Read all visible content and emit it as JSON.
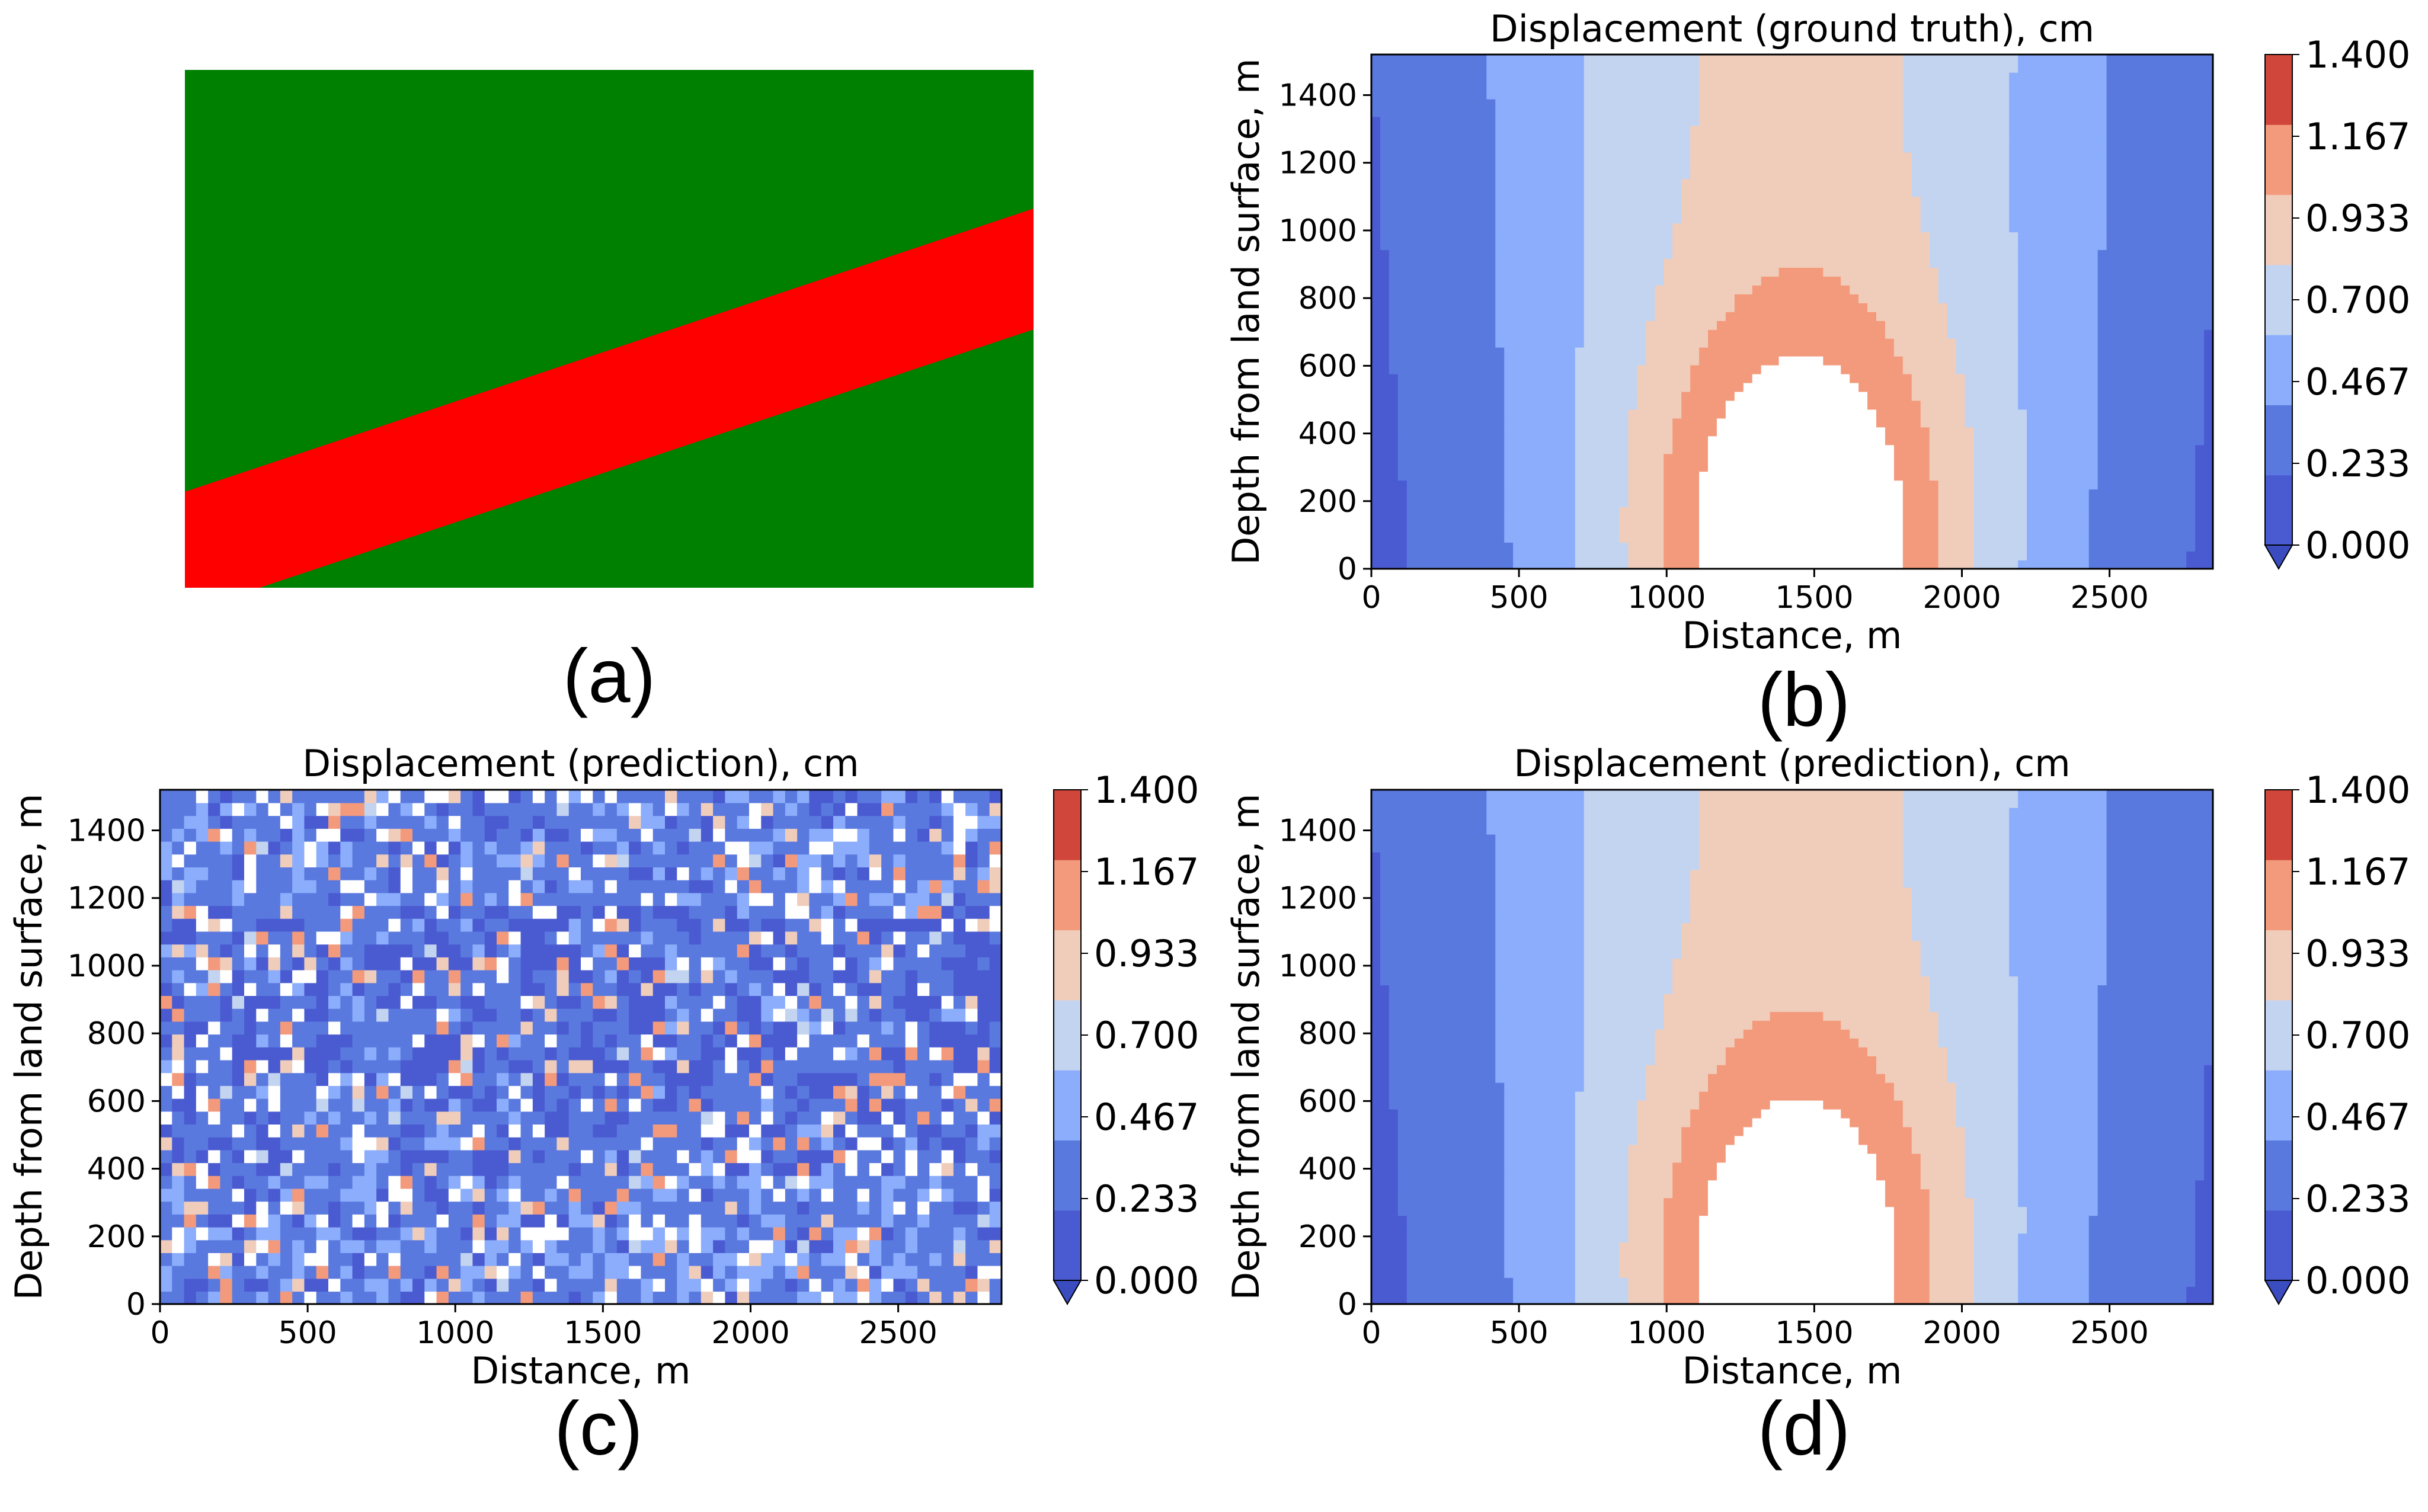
{
  "figure": {
    "panel_labels": [
      "(a)",
      "(b)",
      "(c)",
      "(d)"
    ]
  },
  "panel_a": {
    "colors": {
      "background": "#008000",
      "band": "#ff0000"
    }
  },
  "chart_data": [
    {
      "type": "heatmap",
      "id": "b",
      "title": "Displacement (ground truth), cm",
      "xlabel": "Distance, m",
      "ylabel": "Depth from land surface, m",
      "xlim": [
        0,
        2850
      ],
      "ylim": [
        0,
        1520
      ],
      "xticks": [
        0,
        500,
        1000,
        1500,
        2000,
        2500
      ],
      "yticks": [
        0,
        200,
        400,
        600,
        800,
        1000,
        1200,
        1400
      ],
      "levels": [
        0.0,
        0.233,
        0.467,
        0.7,
        0.933,
        1.167,
        1.4
      ],
      "colorbar_ticks": [
        "0.000",
        "0.233",
        "0.467",
        "0.700",
        "0.933",
        "1.167",
        "1.400"
      ],
      "colors": [
        "#4a5bd1",
        "#5a79df",
        "#8badfb",
        "#c3d4f0",
        "#f0cdbb",
        "#f39a7c",
        "#d0463a"
      ],
      "under_color": "#3a4cc0",
      "field": "smooth",
      "peak": {
        "x": 1450,
        "y": 100,
        "value": 1.42
      }
    },
    {
      "type": "heatmap",
      "id": "c",
      "title": "Displacement (prediction), cm",
      "xlabel": "Distance, m",
      "ylabel": "Depth from land surface, m",
      "xlim": [
        0,
        2850
      ],
      "ylim": [
        0,
        1520
      ],
      "xticks": [
        0,
        500,
        1000,
        1500,
        2000,
        2500
      ],
      "yticks": [
        0,
        200,
        400,
        600,
        800,
        1000,
        1200,
        1400
      ],
      "levels": [
        0.0,
        0.233,
        0.467,
        0.7,
        0.933,
        1.167,
        1.4
      ],
      "colorbar_ticks": [
        "0.000",
        "0.233",
        "0.467",
        "0.700",
        "0.933",
        "1.167",
        "1.400"
      ],
      "colors": [
        "#4a5bd1",
        "#5a79df",
        "#8badfb",
        "#c3d4f0",
        "#f0cdbb",
        "#f39a7c",
        "#d0463a"
      ],
      "under_color": "#3a4cc0",
      "field": "noisy"
    },
    {
      "type": "heatmap",
      "id": "d",
      "title": "Displacement (prediction), cm",
      "xlabel": "Distance, m",
      "ylabel": "Depth from land surface, m",
      "xlim": [
        0,
        2850
      ],
      "ylim": [
        0,
        1520
      ],
      "xticks": [
        0,
        500,
        1000,
        1500,
        2000,
        2500
      ],
      "yticks": [
        0,
        200,
        400,
        600,
        800,
        1000,
        1200,
        1400
      ],
      "levels": [
        0.0,
        0.233,
        0.467,
        0.7,
        0.933,
        1.167,
        1.4
      ],
      "colorbar_ticks": [
        "0.000",
        "0.233",
        "0.467",
        "0.700",
        "0.933",
        "1.167",
        "1.400"
      ],
      "colors": [
        "#4a5bd1",
        "#5a79df",
        "#8badfb",
        "#c3d4f0",
        "#f0cdbb",
        "#f39a7c",
        "#d0463a"
      ],
      "under_color": "#3a4cc0",
      "field": "smooth",
      "peak": {
        "x": 1440,
        "y": 90,
        "value": 1.38
      }
    }
  ]
}
